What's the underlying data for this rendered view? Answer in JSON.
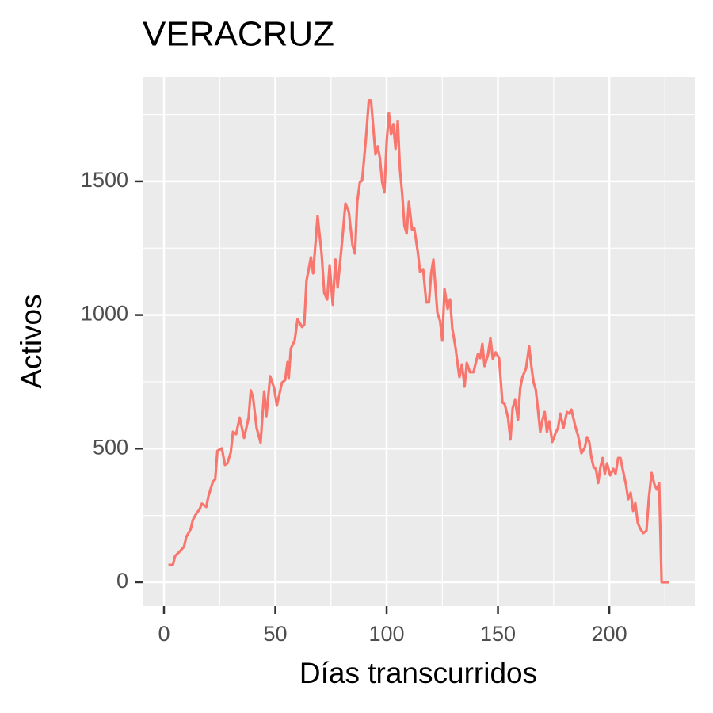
{
  "chart_data": {
    "type": "line",
    "title": "VERACRUZ",
    "xlabel": "Días transcurridos",
    "ylabel": "Activos",
    "x": [
      2,
      4,
      5,
      7.5,
      9,
      10,
      12,
      13,
      14.6,
      16,
      17,
      19,
      20,
      22,
      23,
      24,
      26,
      27.4,
      28.5,
      30,
      31,
      32.4,
      34,
      36,
      38,
      39,
      40,
      41.6,
      43.4,
      45,
      46,
      47.7,
      49.5,
      50.7,
      53,
      54.4,
      55.5,
      56,
      57,
      58.7,
      60,
      62,
      63,
      64,
      66,
      67,
      69,
      70.8,
      72,
      73.3,
      74.4,
      75.8,
      77,
      78,
      80,
      81.5,
      83,
      84.7,
      85.8,
      86.8,
      88,
      89,
      90.7,
      92,
      93,
      95,
      96,
      97,
      98,
      99,
      100,
      101,
      102,
      103,
      104,
      105,
      106,
      107,
      108,
      109,
      110,
      111.4,
      112.4,
      114,
      115,
      116.4,
      117.8,
      119,
      120,
      121,
      122.8,
      124,
      125,
      126,
      127.4,
      128.5,
      129.5,
      131,
      132,
      132.7,
      133.8,
      135,
      136,
      137.4,
      139,
      141,
      142,
      143,
      144,
      145.5,
      146.6,
      147.7,
      149,
      150.5,
      152,
      153,
      154.5,
      155.6,
      156.6,
      157.7,
      159,
      160,
      161,
      162.6,
      164,
      165,
      166,
      167,
      168,
      169,
      170,
      171,
      172,
      173,
      174.4,
      175.8,
      177,
      178,
      179.4,
      181,
      182,
      183,
      184.7,
      186,
      187.5,
      189,
      190,
      191,
      192,
      193,
      194,
      195,
      196,
      197,
      198,
      199,
      200.4,
      201.8,
      202.8,
      204,
      205,
      206,
      207.5,
      208.5,
      209.6,
      210.7,
      211.7,
      212.8,
      214,
      215.3,
      216.7,
      217.8,
      219,
      220.3,
      221.4,
      222.4,
      223.5,
      227
    ],
    "series": [
      {
        "name": "Activos",
        "color": "#F8766D",
        "values": [
          65,
          65,
          98,
          119,
          133,
          169,
          199,
          234,
          258,
          273,
          294,
          282,
          323,
          377,
          385,
          492,
          501,
          439,
          445,
          486,
          563,
          554,
          616,
          540,
          616,
          718,
          691,
          578,
          522,
          714,
          622,
          771,
          726,
          661,
          747,
          756,
          824,
          762,
          875,
          904,
          984,
          955,
          963,
          1127,
          1216,
          1156,
          1370,
          1230,
          1082,
          1058,
          1186,
          1038,
          1207,
          1103,
          1275,
          1417,
          1387,
          1260,
          1230,
          1423,
          1497,
          1503,
          1660,
          1803,
          1803,
          1601,
          1631,
          1586,
          1497,
          1459,
          1645,
          1755,
          1675,
          1714,
          1622,
          1725,
          1542,
          1453,
          1334,
          1305,
          1423,
          1319,
          1325,
          1236,
          1162,
          1171,
          1047,
          1047,
          1156,
          1207,
          1008,
          978,
          904,
          1097,
          1023,
          1058,
          949,
          875,
          809,
          768,
          815,
          732,
          821,
          786,
          786,
          854,
          839,
          892,
          809,
          851,
          913,
          836,
          860,
          839,
          673,
          667,
          617,
          534,
          652,
          682,
          608,
          726,
          768,
          800,
          883,
          809,
          747,
          720,
          643,
          563,
          608,
          637,
          563,
          602,
          525,
          557,
          578,
          631,
          578,
          637,
          631,
          646,
          584,
          548,
          483,
          504,
          543,
          525,
          465,
          430,
          424,
          371,
          430,
          465,
          406,
          445,
          400,
          424,
          406,
          465,
          465,
          424,
          365,
          311,
          335,
          267,
          296,
          222,
          199,
          184,
          193,
          317,
          409,
          365,
          347,
          371,
          0,
          0
        ]
      }
    ],
    "xlim": [
      -9.6,
      238.4
    ],
    "ylim": [
      -89,
      1891
    ],
    "xticks": [
      0,
      50,
      100,
      150,
      200
    ],
    "yticks": [
      0,
      500,
      1000,
      1500
    ],
    "grid": true
  }
}
